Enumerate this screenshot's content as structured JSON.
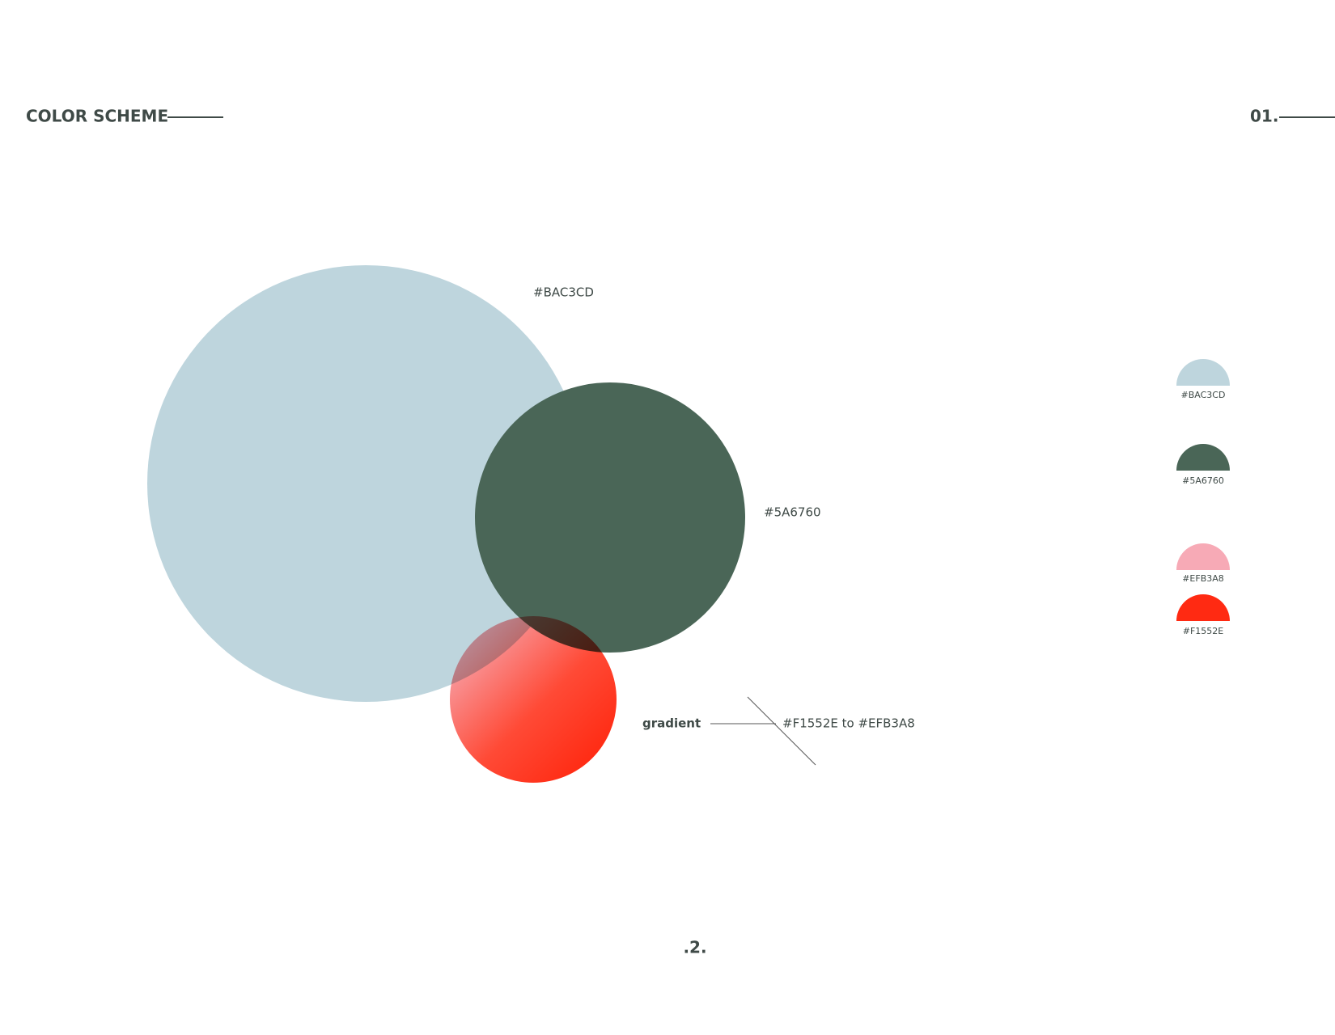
{
  "header": {
    "title": "COLOR SCHEME",
    "page_marker": "01."
  },
  "circles": [
    {
      "label": "#BAC3CD"
    },
    {
      "label": "#5A6760"
    },
    {
      "label": "gradient",
      "detail": "#F1552E to #EFB3A8"
    }
  ],
  "swatches": [
    "#BAC3CD",
    "#5A6760",
    "#EFB3A8",
    "#F1552E"
  ],
  "footer": {
    "page_number": ".2."
  }
}
